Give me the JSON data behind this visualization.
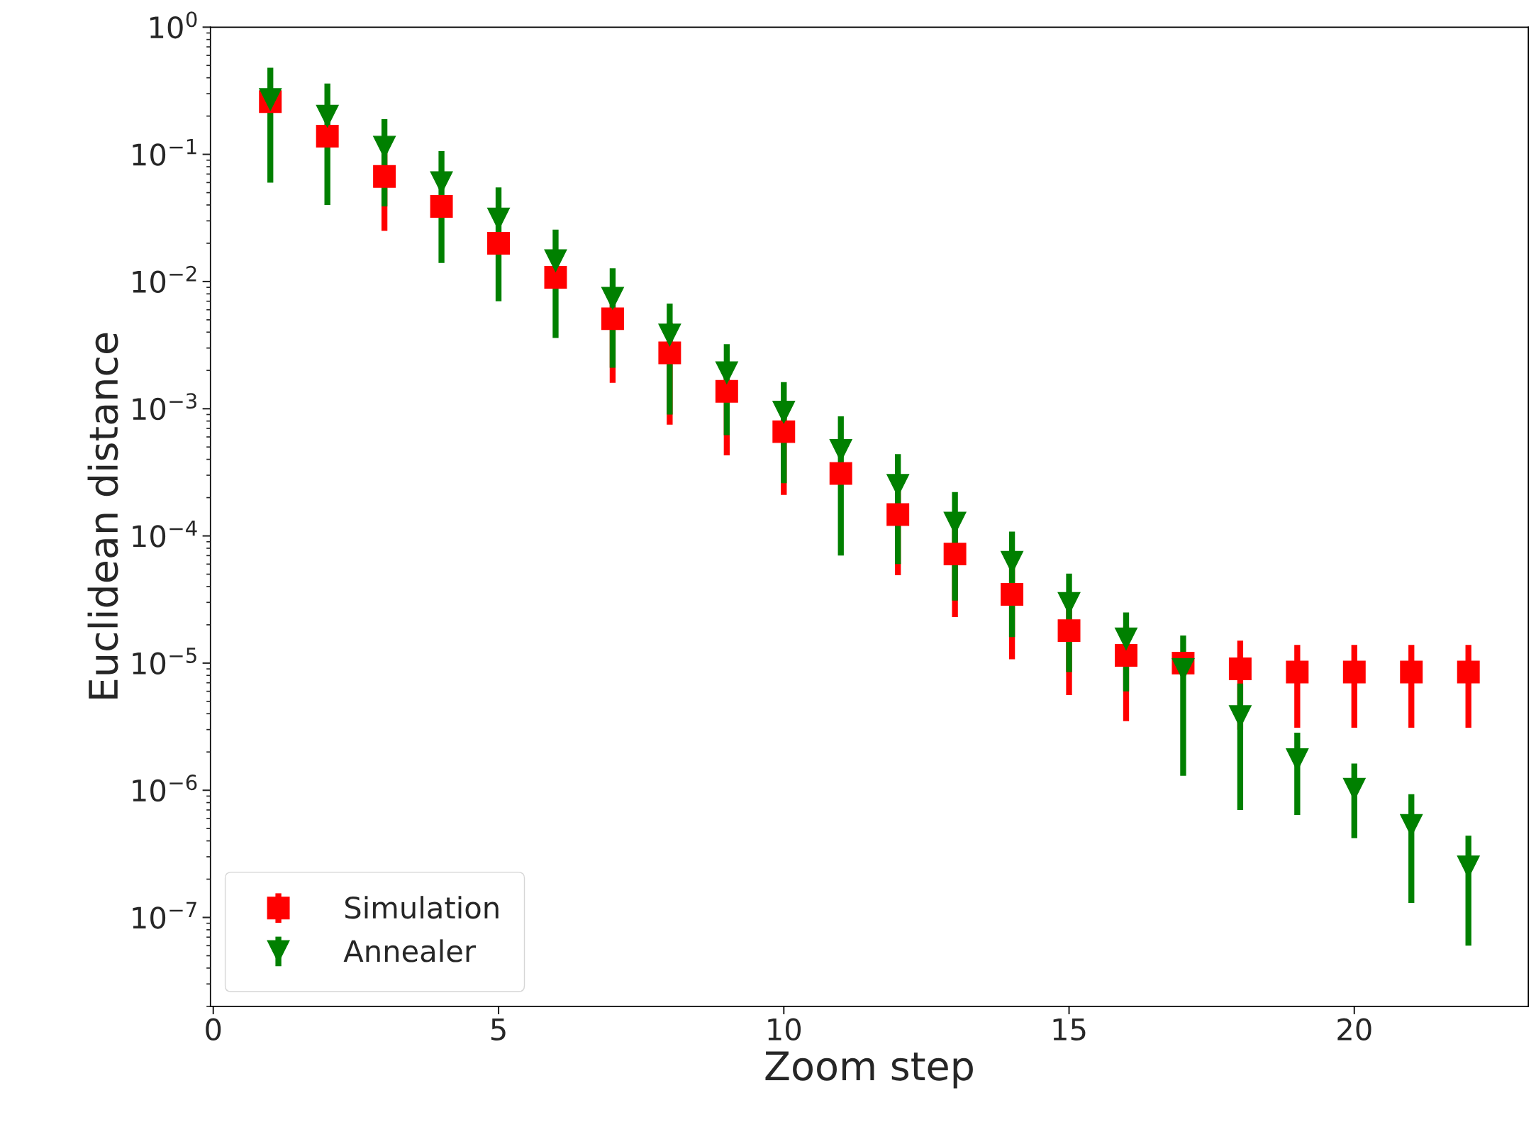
{
  "chart_data": {
    "type": "scatter",
    "xlabel": "Zoom step",
    "ylabel": "Euclidean distance",
    "x": [
      1,
      2,
      3,
      4,
      5,
      6,
      7,
      8,
      9,
      10,
      11,
      12,
      13,
      14,
      15,
      16,
      17,
      18,
      19,
      20,
      21,
      22
    ],
    "series": [
      {
        "name": "Simulation",
        "color": "#ff0000",
        "marker": "square",
        "values": [
          0.26,
          0.139,
          0.067,
          0.039,
          0.02,
          0.0108,
          0.0051,
          0.00275,
          0.00137,
          0.00066,
          0.00031,
          0.000147,
          7.2e-05,
          3.47e-05,
          1.8e-05,
          1.15e-05,
          1e-05,
          9e-06,
          8.5e-06,
          8.5e-06,
          8.5e-06,
          8.5e-06
        ],
        "errors": [
          null,
          null,
          0.042,
          null,
          null,
          null,
          0.0035,
          0.002,
          0.00094,
          0.00045,
          null,
          9.8e-05,
          4.9e-05,
          2.4e-05,
          1.24e-05,
          8e-06,
          null,
          6e-06,
          5.4e-06,
          5.4e-06,
          5.4e-06,
          5.4e-06
        ]
      },
      {
        "name": "Annealer",
        "color": "#008000",
        "marker": "triangle",
        "values": [
          0.27,
          0.2,
          0.114,
          0.06,
          0.031,
          0.0146,
          0.0074,
          0.0038,
          0.00192,
          0.00094,
          0.00047,
          0.00025,
          0.000126,
          6.2e-05,
          2.95e-05,
          1.55e-05,
          8.9e-06,
          3.8e-06,
          1.74e-06,
          1.02e-06,
          5.3e-07,
          2.5e-07
        ],
        "errors": [
          0.21,
          0.16,
          0.075,
          0.046,
          0.024,
          0.011,
          0.0053,
          0.0029,
          0.0013,
          0.00068,
          0.0004,
          0.00019,
          9.5e-05,
          4.6e-05,
          2.1e-05,
          9.5e-06,
          7.6e-06,
          3.1e-06,
          1.1e-06,
          6e-07,
          4e-07,
          1.9e-07
        ]
      }
    ],
    "log": "y",
    "xlim": [
      -0.05,
      23.05
    ],
    "xticks": [
      0,
      5,
      10,
      15,
      20
    ],
    "ylim": [
      2e-08,
      1
    ],
    "yticks": [
      {
        "value": 1,
        "label": "10$^{0}$"
      },
      {
        "value": 0.1,
        "label": "10$^{−1}$"
      },
      {
        "value": 0.01,
        "label": "10$^{−2}$"
      },
      {
        "value": 0.001,
        "label": "10$^{−3}$"
      },
      {
        "value": 0.0001,
        "label": "10$^{−4}$"
      },
      {
        "value": 1e-05,
        "label": "10$^{−5}$"
      },
      {
        "value": 1e-06,
        "label": "10$^{−6}$"
      },
      {
        "value": 1e-07,
        "label": "10$^{−7}$"
      }
    ],
    "grid": false,
    "legend": "bottom left"
  }
}
